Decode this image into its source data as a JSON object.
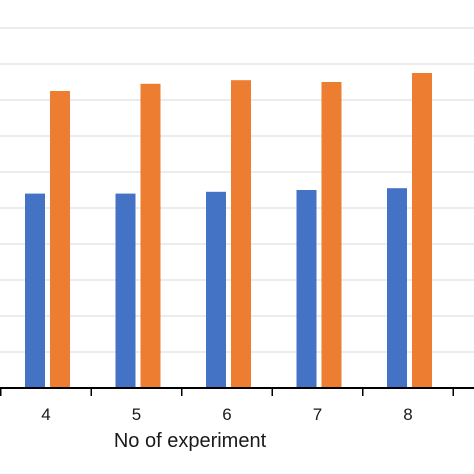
{
  "chart_data": {
    "type": "bar",
    "categories": [
      "4",
      "5",
      "6",
      "7",
      "8"
    ],
    "series": [
      {
        "color": "#4472C4",
        "values": [
          0.54,
          0.54,
          0.545,
          0.55,
          0.555
        ]
      },
      {
        "color": "#ED7D31",
        "values": [
          0.825,
          0.845,
          0.855,
          0.85,
          0.875
        ]
      }
    ],
    "xlabel": "No of experiment",
    "ylim": [
      0,
      1.1
    ],
    "grid": true,
    "gridline_step": 0.1,
    "axis_color": "#000000",
    "grid_color": "#d9d9d9"
  }
}
